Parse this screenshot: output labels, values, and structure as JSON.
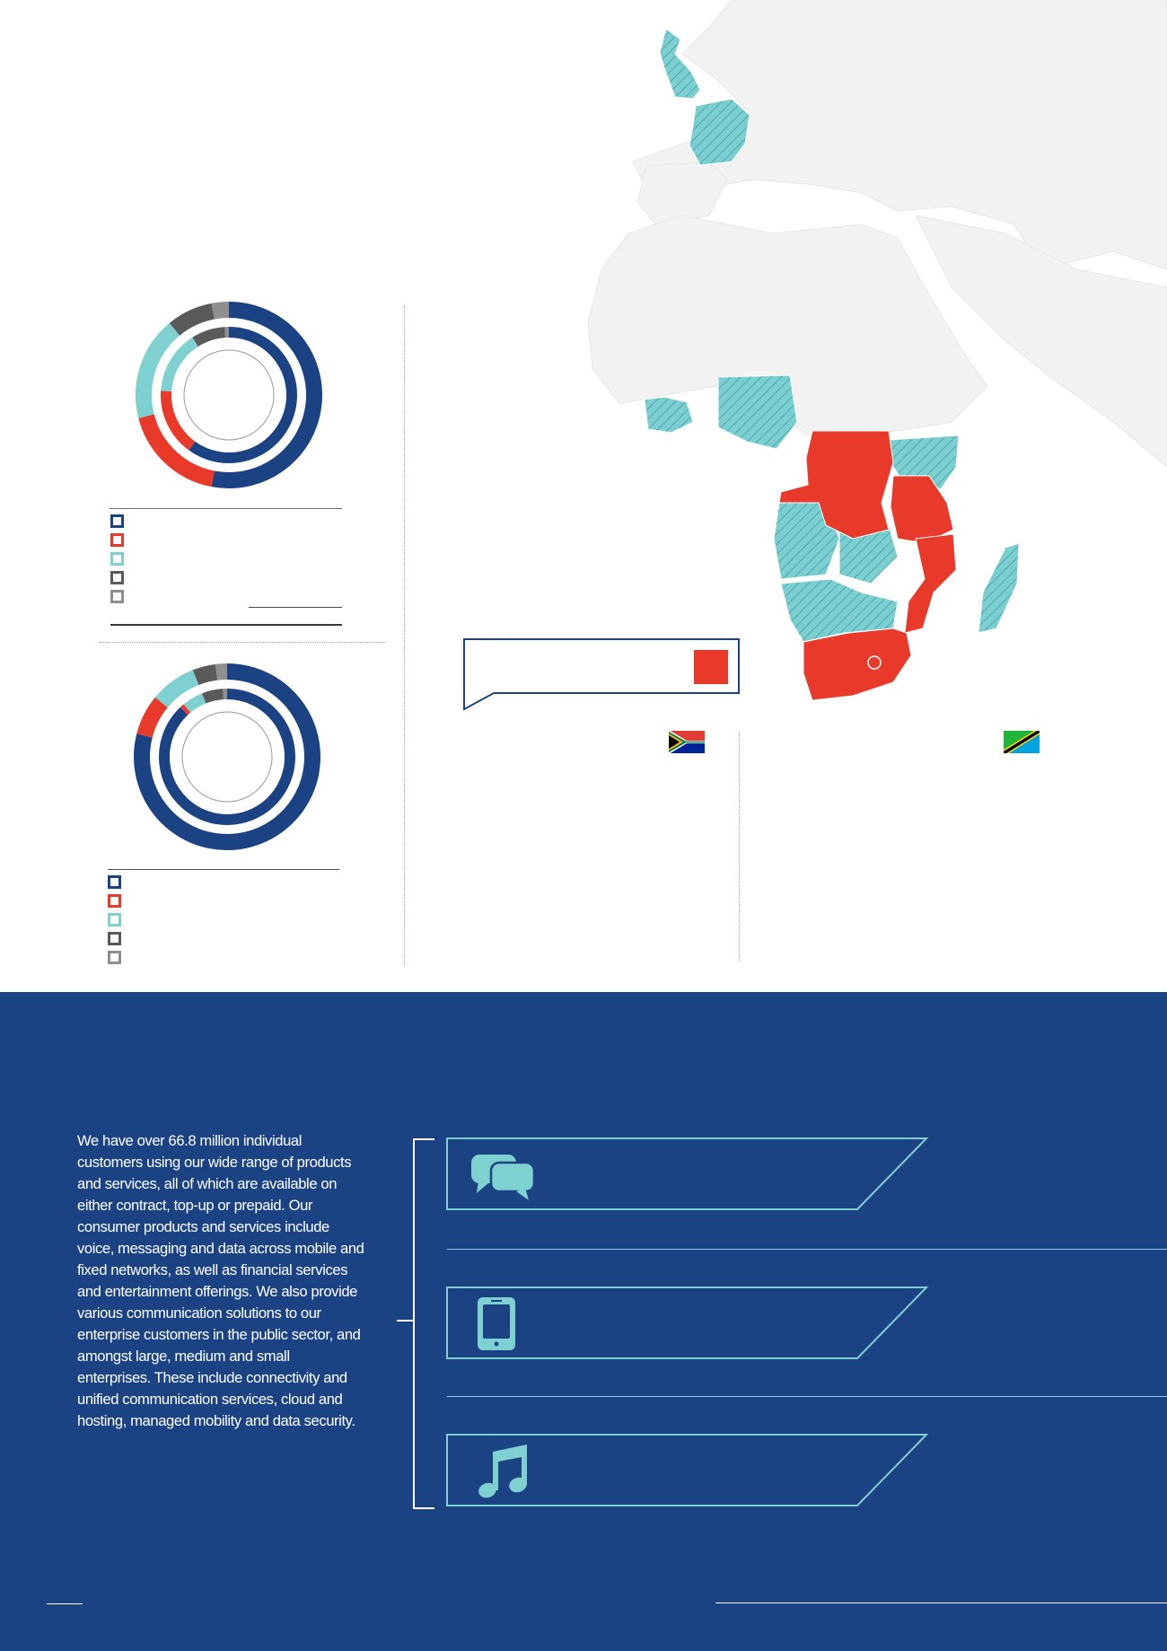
{
  "colors": {
    "navy": "#1b4384",
    "red": "#e8392a",
    "teal": "#7fd0d1",
    "dark_grey": "#5a5a5a",
    "light_grey": "#8f8f8f",
    "map_land": "#f2f2f2",
    "map_hatch": "#7ccfd0"
  },
  "chart_data": [
    {
      "type": "pie",
      "variant": "concentric-donut",
      "rings": [
        {
          "ring": "outer",
          "values": [
            53,
            18,
            18,
            8,
            3
          ]
        },
        {
          "ring": "inner",
          "values": [
            60,
            16,
            15,
            8,
            1
          ]
        }
      ],
      "legend_entries": [
        "",
        "",
        "",
        "",
        ""
      ],
      "legend_colors": [
        "#1b4384",
        "#e8392a",
        "#7fd0d1",
        "#5a5a5a",
        "#8f8f8f"
      ]
    },
    {
      "type": "pie",
      "variant": "concentric-donut",
      "rings": [
        {
          "ring": "outer",
          "values": [
            79,
            7,
            8,
            4,
            2
          ]
        },
        {
          "ring": "inner",
          "values": [
            88,
            1,
            5,
            5,
            1
          ]
        }
      ],
      "legend_entries": [
        "",
        "",
        "",
        "",
        ""
      ],
      "legend_colors": [
        "#1b4384",
        "#e8392a",
        "#7fd0d1",
        "#5a5a5a",
        "#8f8f8f"
      ]
    }
  ],
  "map": {
    "highlighted_regions": [
      "south-africa",
      "dr-congo",
      "tanzania",
      "mozambique"
    ],
    "hatched_regions": [
      "united-kingdom",
      "france",
      "west-africa",
      "nigeria-cameroon",
      "kenya",
      "angola",
      "zambia",
      "namibia-botswana",
      "madagascar"
    ],
    "callout": {
      "text": ""
    }
  },
  "flags": [
    {
      "icon": "south-africa-flag-icon"
    },
    {
      "icon": "tanzania-flag-icon"
    }
  ],
  "intro_text": "We have over 66.8 million individual customers using our wide range of products and services, all of which are available on either contract, top-up or prepaid. Our consumer products and services include voice, messaging and data across mobile and fixed networks, as well as financial services and entertainment offerings. We also provide various communication solutions to our enterprise customers in the public sector, and amongst large, medium and small enterprises. These include connectivity and unified communication services, cloud and hosting, managed mobility and data security.",
  "services": [
    {
      "icon": "chat-bubbles-icon",
      "label": ""
    },
    {
      "icon": "smartphone-icon",
      "label": ""
    },
    {
      "icon": "music-note-icon",
      "label": ""
    }
  ]
}
